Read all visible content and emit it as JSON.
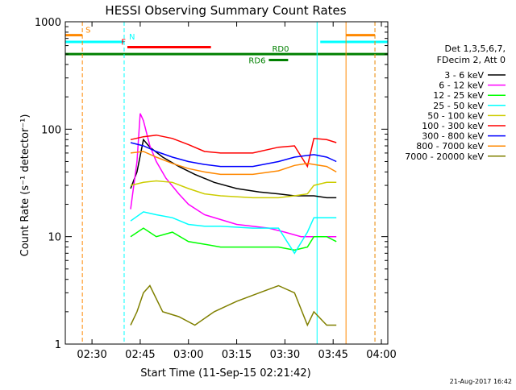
{
  "chart_data": {
    "type": "line",
    "title": "HESSI Observing Summary Count Rates",
    "xlabel": "Start Time (11-Sep-15 02:21:42)",
    "ylabel": "Count Rate (s⁻¹ detector⁻¹)",
    "ylog": true,
    "ylim": [
      1,
      1000
    ],
    "xlim": [
      "02:21:42",
      "04:02:00"
    ],
    "x_ticks": [
      "02:30",
      "02:45",
      "03:00",
      "03:15",
      "03:30",
      "03:45",
      "04:00"
    ],
    "y_ticks": [
      "1",
      "10",
      "100",
      "1000"
    ],
    "legend_title": [
      "Det 1,3,5,6,7,",
      "FDecim 2, Att 0"
    ],
    "legend_position": "right",
    "timestamp": "21-Aug-2017 16:42",
    "series": [
      {
        "name": "3 - 6 keV",
        "color": "#000000",
        "x": [
          "02:42:00",
          "02:44:00",
          "02:46:00",
          "02:48:00",
          "02:52:00",
          "02:57:00",
          "03:02:00",
          "03:08:00",
          "03:15:00",
          "03:22:00",
          "03:28:00",
          "03:33:00",
          "03:37:00",
          "03:39:00",
          "03:43:00",
          "03:46:00"
        ],
        "values": [
          28,
          40,
          80,
          68,
          55,
          45,
          38,
          32,
          28,
          26,
          25,
          24,
          24,
          24,
          23,
          23
        ]
      },
      {
        "name": "6 - 12 keV",
        "color": "#ff00ff",
        "x": [
          "02:42:00",
          "02:44:00",
          "02:45:00",
          "02:46:00",
          "02:48:00",
          "02:50:00",
          "02:53:00",
          "02:57:00",
          "03:00:00",
          "03:05:00",
          "03:15:00",
          "03:25:00",
          "03:30:00",
          "03:35:00",
          "03:38:00",
          "03:40:00",
          "03:43:00",
          "03:46:00"
        ],
        "values": [
          18,
          50,
          140,
          120,
          70,
          50,
          35,
          25,
          20,
          16,
          13,
          12,
          11,
          10,
          10,
          10,
          10,
          10
        ]
      },
      {
        "name": "12 - 25 keV",
        "color": "#00ff00",
        "x": [
          "02:42:00",
          "02:46:00",
          "02:50:00",
          "02:55:00",
          "03:00:00",
          "03:05:00",
          "03:10:00",
          "03:20:00",
          "03:28:00",
          "03:33:00",
          "03:37:00",
          "03:39:00",
          "03:43:00",
          "03:46:00"
        ],
        "values": [
          10,
          12,
          10,
          11,
          9,
          8.5,
          8,
          8,
          8,
          7.5,
          8,
          10,
          10,
          9
        ]
      },
      {
        "name": "25 - 50 keV",
        "color": "#00ffff",
        "x": [
          "02:42:00",
          "02:46:00",
          "02:50:00",
          "02:55:00",
          "03:00:00",
          "03:05:00",
          "03:10:00",
          "03:20:00",
          "03:28:00",
          "03:33:00",
          "03:37:00",
          "03:39:00",
          "03:43:00",
          "03:46:00"
        ],
        "values": [
          14,
          17,
          16,
          15,
          13,
          12.5,
          12.5,
          12,
          12,
          7,
          11,
          15,
          15,
          15
        ]
      },
      {
        "name": "50 - 100 keV",
        "color": "#cccc00",
        "x": [
          "02:42:00",
          "02:46:00",
          "02:50:00",
          "02:55:00",
          "03:00:00",
          "03:05:00",
          "03:10:00",
          "03:20:00",
          "03:28:00",
          "03:33:00",
          "03:37:00",
          "03:39:00",
          "03:43:00",
          "03:46:00"
        ],
        "values": [
          30,
          32,
          33,
          32,
          28,
          25,
          24,
          23,
          23,
          24,
          25,
          30,
          32,
          32
        ]
      },
      {
        "name": "100 - 300 keV",
        "color": "#ff0000",
        "x": [
          "02:42:00",
          "02:46:00",
          "02:50:00",
          "02:55:00",
          "03:00:00",
          "03:05:00",
          "03:10:00",
          "03:20:00",
          "03:28:00",
          "03:33:00",
          "03:37:00",
          "03:39:00",
          "03:43:00",
          "03:46:00"
        ],
        "values": [
          80,
          85,
          88,
          82,
          72,
          62,
          60,
          60,
          68,
          70,
          45,
          82,
          80,
          75
        ]
      },
      {
        "name": "300 - 800 keV",
        "color": "#0000ff",
        "x": [
          "02:42:00",
          "02:46:00",
          "02:50:00",
          "02:55:00",
          "03:00:00",
          "03:05:00",
          "03:10:00",
          "03:20:00",
          "03:28:00",
          "03:33:00",
          "03:37:00",
          "03:39:00",
          "03:43:00",
          "03:46:00"
        ],
        "values": [
          75,
          70,
          62,
          55,
          50,
          47,
          45,
          45,
          50,
          55,
          57,
          58,
          55,
          50
        ]
      },
      {
        "name": "800 - 7000 keV",
        "color": "#ff8800",
        "x": [
          "02:42:00",
          "02:46:00",
          "02:50:00",
          "02:55:00",
          "03:00:00",
          "03:05:00",
          "03:10:00",
          "03:20:00",
          "03:28:00",
          "03:33:00",
          "03:37:00",
          "03:39:00",
          "03:43:00",
          "03:46:00"
        ],
        "values": [
          60,
          62,
          55,
          48,
          43,
          40,
          38,
          38,
          41,
          46,
          48,
          47,
          45,
          40
        ]
      },
      {
        "name": "7000 - 20000 keV",
        "color": "#808000",
        "x": [
          "02:42:00",
          "02:44:00",
          "02:46:00",
          "02:48:00",
          "02:52:00",
          "02:57:00",
          "03:02:00",
          "03:08:00",
          "03:15:00",
          "03:22:00",
          "03:28:00",
          "03:33:00",
          "03:37:00",
          "03:39:00",
          "03:43:00",
          "03:46:00"
        ],
        "values": [
          1.5,
          2,
          3,
          3.5,
          2,
          1.8,
          1.5,
          2,
          2.5,
          3,
          3.5,
          3,
          1.5,
          2,
          1.5,
          1.5
        ]
      }
    ],
    "flags": [
      {
        "label": "S",
        "color": "#ff8800",
        "y": 750,
        "segments": [
          [
            "02:21:42",
            "02:27:00"
          ],
          [
            "03:49:00",
            "03:58:00"
          ]
        ]
      },
      {
        "label": "N",
        "color": "#00ffff",
        "y": 650,
        "segments": [
          [
            "02:21:42",
            "02:40:00"
          ],
          [
            "03:41:00",
            "04:02:00"
          ]
        ]
      },
      {
        "label": "F",
        "color": "#ff0000",
        "y": 580,
        "segments": [
          [
            "02:41:00",
            "03:07:00"
          ]
        ]
      },
      {
        "label": "RD0",
        "color": "#008000",
        "y": 500,
        "segments": [
          [
            "02:21:42",
            "04:02:00"
          ]
        ]
      },
      {
        "label": "RD6",
        "color": "#008000",
        "y": 440,
        "segments": [
          [
            "03:25:00",
            "03:31:00"
          ]
        ]
      }
    ],
    "vlines": [
      {
        "time": "02:21:42",
        "color": "#00ffff",
        "dash": false
      },
      {
        "time": "02:27:00",
        "color": "#ff8800",
        "dash": true
      },
      {
        "time": "02:40:00",
        "color": "#00ffff",
        "dash": true
      },
      {
        "time": "03:40:00",
        "color": "#00ffff",
        "dash": false
      },
      {
        "time": "03:49:00",
        "color": "#ff8800",
        "dash": false
      },
      {
        "time": "03:58:00",
        "color": "#00ffff",
        "dash": true
      },
      {
        "time": "03:58:00",
        "color": "#ff8800",
        "dash": true
      }
    ]
  }
}
